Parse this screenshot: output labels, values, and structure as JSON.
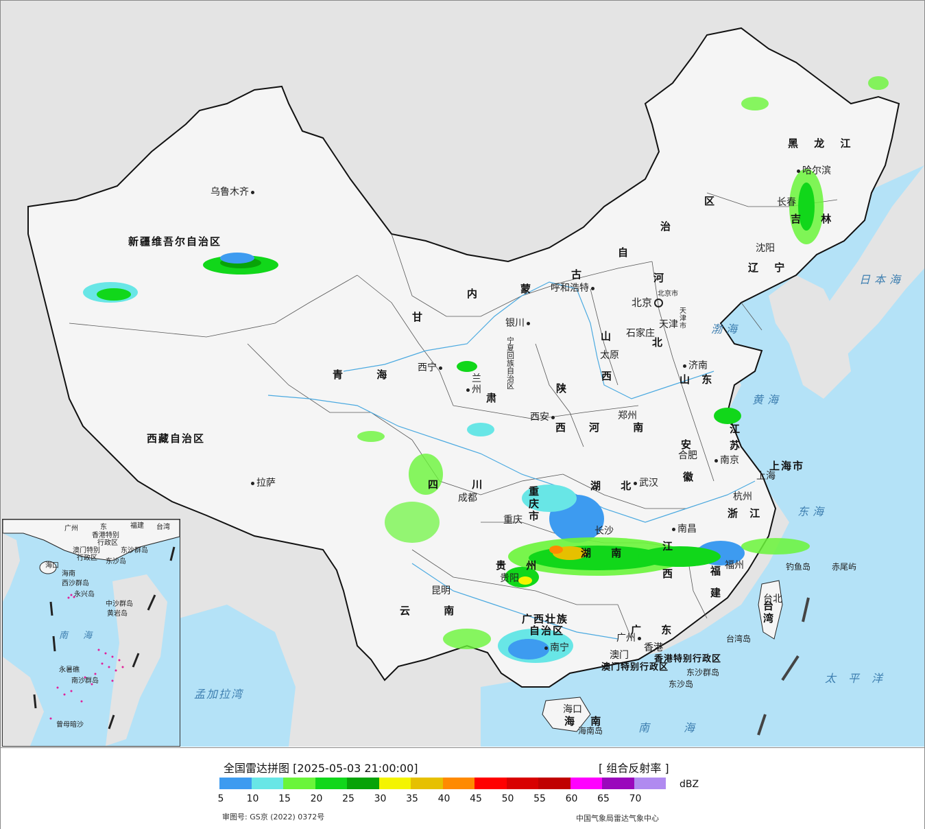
{
  "colors": {
    "ocean": "#b4e2f7",
    "land_background": "#e4e4e4",
    "china_land": "#f5f5f5",
    "sea_label": "#3e7fb0"
  },
  "provinces": [
    {
      "name": "新疆维吾尔自治区"
    },
    {
      "name": "西藏自治区"
    },
    {
      "name": "青 海"
    },
    {
      "name": "甘"
    },
    {
      "name": "肃"
    },
    {
      "name": "内"
    },
    {
      "name": "蒙"
    },
    {
      "name": "古"
    },
    {
      "name": "自"
    },
    {
      "name": "治"
    },
    {
      "name": "区"
    },
    {
      "name": "黑 龙 江"
    },
    {
      "name": "吉 林"
    },
    {
      "name": "辽 宁"
    },
    {
      "name": "河"
    },
    {
      "name": "北"
    },
    {
      "name": "山"
    },
    {
      "name": "西"
    },
    {
      "name": "山 东"
    },
    {
      "name": "陕"
    },
    {
      "name": "西"
    },
    {
      "name": "河 南"
    },
    {
      "name": "江"
    },
    {
      "name": "苏"
    },
    {
      "name": "安"
    },
    {
      "name": "徽"
    },
    {
      "name": "上海市"
    },
    {
      "name": "浙 江"
    },
    {
      "name": "湖 北"
    },
    {
      "name": "四 川"
    },
    {
      "name": "重 庆 市"
    },
    {
      "name": "贵 州"
    },
    {
      "name": "湖 南"
    },
    {
      "name": "江 西"
    },
    {
      "name": "福 建"
    },
    {
      "name": "云 南"
    },
    {
      "name": "广西壮族"
    },
    {
      "name": "自治区"
    },
    {
      "name": "广 东"
    },
    {
      "name": "台湾"
    },
    {
      "name": "海 南"
    },
    {
      "name": "香港特别行政区"
    },
    {
      "name": "澳门特别行政区"
    },
    {
      "name": "宁夏回族自治区"
    }
  ],
  "cities": [
    {
      "name": "乌鲁木齐"
    },
    {
      "name": "拉萨"
    },
    {
      "name": "西宁"
    },
    {
      "name": "兰州"
    },
    {
      "name": "银川"
    },
    {
      "name": "呼和浩特"
    },
    {
      "name": "北京"
    },
    {
      "name": "北京市"
    },
    {
      "name": "天津"
    },
    {
      "name": "天津市"
    },
    {
      "name": "石家庄"
    },
    {
      "name": "太原"
    },
    {
      "name": "济南"
    },
    {
      "name": "郑州"
    },
    {
      "name": "西安"
    },
    {
      "name": "成都"
    },
    {
      "name": "重庆"
    },
    {
      "name": "武汉"
    },
    {
      "name": "合肥"
    },
    {
      "name": "南京"
    },
    {
      "name": "上海"
    },
    {
      "name": "杭州"
    },
    {
      "name": "长沙"
    },
    {
      "name": "南昌"
    },
    {
      "name": "贵阳"
    },
    {
      "name": "昆明"
    },
    {
      "name": "南宁"
    },
    {
      "name": "广州"
    },
    {
      "name": "香港"
    },
    {
      "name": "澳门"
    },
    {
      "name": "福州"
    },
    {
      "name": "台北"
    },
    {
      "name": "海口"
    },
    {
      "name": "沈阳"
    },
    {
      "name": "长春"
    },
    {
      "name": "哈尔滨"
    }
  ],
  "islands": [
    {
      "name": "钓鱼岛"
    },
    {
      "name": "赤尾屿"
    },
    {
      "name": "台湾岛"
    },
    {
      "name": "东沙群岛"
    },
    {
      "name": "东沙岛"
    },
    {
      "name": "海南岛"
    }
  ],
  "seas": [
    {
      "name": "日本海"
    },
    {
      "name": "渤海"
    },
    {
      "name": "黄海"
    },
    {
      "name": "东海"
    },
    {
      "name": "太平洋"
    },
    {
      "name": "南海"
    },
    {
      "name": "孟加拉湾"
    }
  ],
  "inset": {
    "labels": [
      "广州",
      "东",
      "福建",
      "台湾",
      "香港特别",
      "行政区",
      "澳门特别",
      "行政区",
      "东沙群岛",
      "东沙岛",
      "海口",
      "海南",
      "西沙群岛",
      "永兴岛",
      "中沙群岛",
      "黄岩岛",
      "南沙群岛",
      "永暑礁",
      "曾母暗沙"
    ],
    "sea": "南 海"
  },
  "legend": {
    "title": "全国雷达拼图 [2025-05-03 21:00:00]",
    "product": "[ 组合反射率 ]",
    "unit": "dBZ",
    "colors": [
      "#3d9bf0",
      "#68e6e6",
      "#6af53a",
      "#11d71a",
      "#08a308",
      "#f4f400",
      "#e6c000",
      "#ff8a00",
      "#ff0000",
      "#d80000",
      "#c00000",
      "#ff00ff",
      "#9a08bc",
      "#b08af0"
    ],
    "ticks": [
      "5",
      "10",
      "15",
      "20",
      "25",
      "30",
      "35",
      "40",
      "45",
      "50",
      "55",
      "60",
      "65",
      "70"
    ],
    "approval": "审图号: GS京 (2022) 0372号",
    "credit": "中国气象局雷达气象中心"
  }
}
